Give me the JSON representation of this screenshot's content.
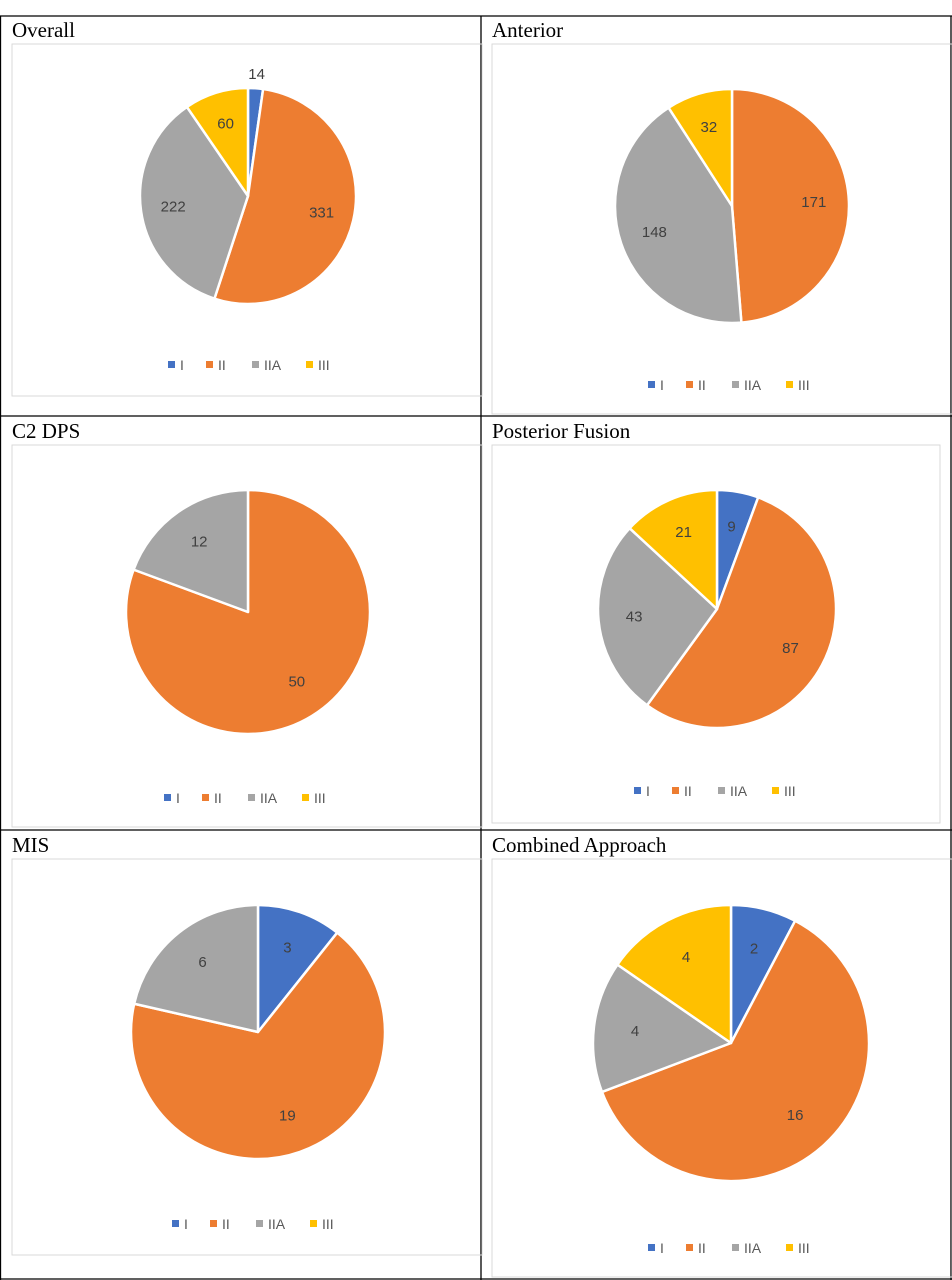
{
  "legend_categories": [
    "I",
    "II",
    "IIA",
    "III"
  ],
  "colors": {
    "I": "#4472C4",
    "II": "#ED7D31",
    "IIA": "#A5A5A5",
    "III": "#FFC000"
  },
  "chart_data": [
    {
      "type": "pie",
      "title": "Overall",
      "categories": [
        "I",
        "II",
        "IIA",
        "III"
      ],
      "values": [
        14,
        331,
        222,
        60
      ],
      "legend": "bottom"
    },
    {
      "type": "pie",
      "title": "Anterior",
      "categories": [
        "II",
        "IIA",
        "III"
      ],
      "values": [
        171,
        148,
        32
      ],
      "legend": "bottom"
    },
    {
      "type": "pie",
      "title": "C2 DPS",
      "categories": [
        "II",
        "IIA"
      ],
      "values": [
        50,
        12
      ],
      "legend": "bottom"
    },
    {
      "type": "pie",
      "title": "Posterior Fusion",
      "categories": [
        "I",
        "II",
        "IIA",
        "III"
      ],
      "values": [
        9,
        87,
        43,
        21
      ],
      "legend": "bottom"
    },
    {
      "type": "pie",
      "title": "MIS",
      "categories": [
        "I",
        "II",
        "IIA"
      ],
      "values": [
        3,
        19,
        6
      ],
      "legend": "bottom"
    },
    {
      "type": "pie",
      "title": "Combined Approach",
      "categories": [
        "I",
        "II",
        "IIA",
        "III"
      ],
      "values": [
        2,
        16,
        4,
        4
      ],
      "legend": "bottom"
    }
  ]
}
